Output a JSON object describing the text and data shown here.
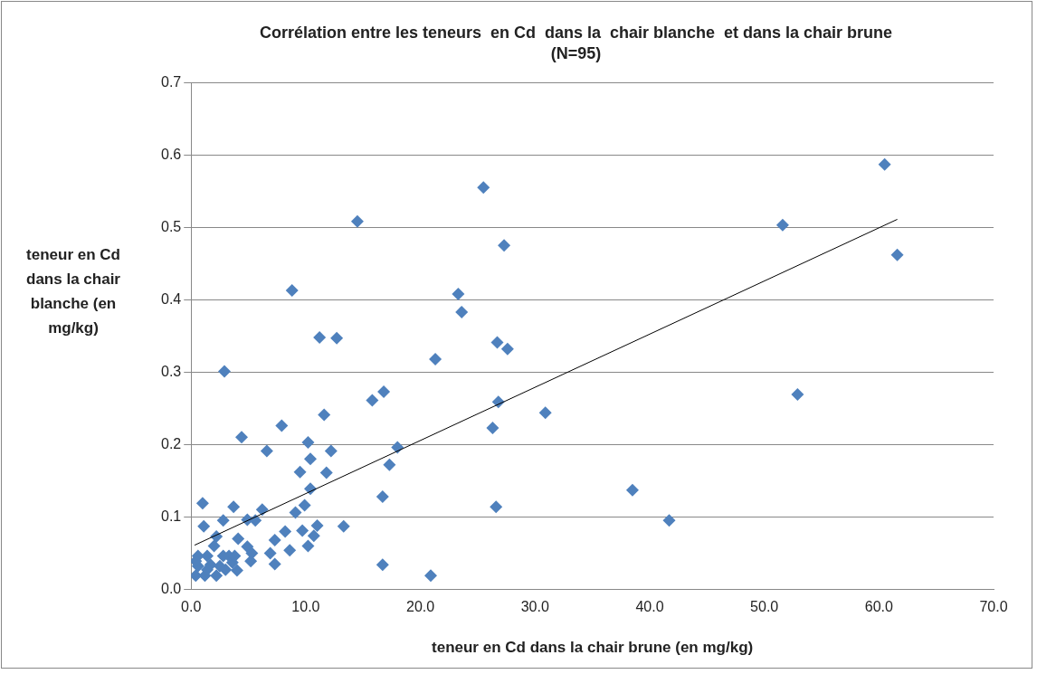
{
  "chart_data": {
    "type": "scatter",
    "title": "Corrélation entre les teneurs  en Cd  dans la  chair blanche  et dans la chair brune",
    "subtitle": "(N=95)",
    "xlabel": "teneur en Cd dans la chair brune (en mg/kg)",
    "ylabel": "teneur en Cd dans la chair blanche (en mg/kg)",
    "xlim": [
      0,
      70
    ],
    "xticks": [
      {
        "value": 0,
        "label": "0.0"
      },
      {
        "value": 10,
        "label": "10.0"
      },
      {
        "value": 20,
        "label": "20.0"
      },
      {
        "value": 30,
        "label": "30.0"
      },
      {
        "value": 40,
        "label": "40.0"
      },
      {
        "value": 50,
        "label": "50.0"
      },
      {
        "value": 60,
        "label": "60.0"
      },
      {
        "value": 70,
        "label": "70.0"
      }
    ],
    "ylim": [
      0,
      0.7
    ],
    "yticks": [
      {
        "value": 0,
        "label": "0.0"
      },
      0.1,
      0.2,
      0.3,
      0.4,
      0.5,
      0.6,
      0.7
    ],
    "grid": "y",
    "legend": false,
    "marker": "diamond",
    "series": [
      {
        "type": "scatter",
        "color": "#4f81bd",
        "x": [
          14.5,
          25.5,
          27.3,
          8.8,
          23.3,
          23.6,
          11.2,
          12.7,
          2.9,
          21.3,
          26.7,
          27.6,
          15.8,
          16.8,
          26.8,
          26.3,
          30.9,
          4.4,
          7.9,
          6.6,
          10.2,
          11.6,
          12.2,
          10.4,
          9.5,
          11.8,
          10.4,
          9.9,
          9.1,
          6.2,
          3.7,
          1.0,
          2.8,
          1.1,
          4.9,
          5.6,
          13.3,
          8.2,
          9.7,
          11.0,
          10.7,
          10.2,
          8.6,
          7.3,
          6.9,
          7.3,
          5.2,
          4.1,
          4.9,
          5.3,
          4.0,
          3.6,
          2.2,
          2.0,
          2.8,
          1.4,
          0.6,
          0.4,
          1.2,
          2.2,
          3.0,
          0.6,
          1.7,
          2.5,
          3.3,
          3.8,
          0.4,
          1.4,
          16.7,
          20.9,
          16.7,
          17.3,
          18.0,
          26.6,
          38.5,
          41.7,
          60.5,
          51.6,
          61.6,
          52.9
        ],
        "values": [
          0.508,
          0.555,
          0.475,
          0.413,
          0.408,
          0.383,
          0.348,
          0.347,
          0.301,
          0.318,
          0.341,
          0.332,
          0.261,
          0.273,
          0.259,
          0.223,
          0.244,
          0.21,
          0.226,
          0.191,
          0.203,
          0.241,
          0.191,
          0.18,
          0.162,
          0.161,
          0.139,
          0.116,
          0.106,
          0.11,
          0.114,
          0.119,
          0.095,
          0.087,
          0.096,
          0.095,
          0.087,
          0.08,
          0.081,
          0.088,
          0.074,
          0.06,
          0.054,
          0.068,
          0.05,
          0.035,
          0.039,
          0.07,
          0.059,
          0.05,
          0.026,
          0.037,
          0.073,
          0.06,
          0.046,
          0.046,
          0.046,
          0.019,
          0.019,
          0.019,
          0.027,
          0.032,
          0.034,
          0.032,
          0.046,
          0.046,
          0.039,
          0.027,
          0.034,
          0.019,
          0.128,
          0.172,
          0.196,
          0.114,
          0.137,
          0.095,
          0.587,
          0.503,
          0.462,
          0.269
        ]
      },
      {
        "type": "line",
        "color": "#000000",
        "marker": "none",
        "x": [
          0.3,
          61.6
        ],
        "values": [
          0.061,
          0.511
        ]
      }
    ]
  }
}
